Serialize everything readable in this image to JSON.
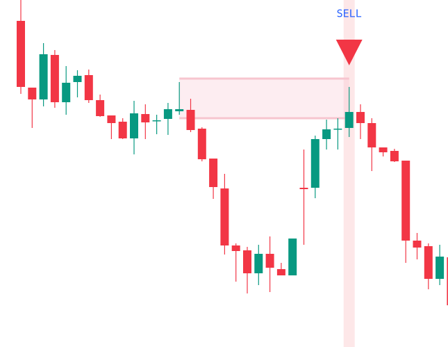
{
  "chart_data": {
    "type": "candlestick",
    "annotation": "SELL",
    "signal_index": 29,
    "zone": {
      "high": 386,
      "low": 329,
      "start_index": 14,
      "end_index": 29,
      "color": "#f7c5cf"
    },
    "up_color": "#089981",
    "down_color": "#f23645",
    "signal_color": "#f23645",
    "annotation_color": "#2962ff",
    "ylim": [
      0,
      499
    ],
    "open": [
      469,
      373,
      356,
      420,
      352,
      381,
      391,
      355,
      333,
      324,
      300,
      335,
      325,
      328,
      339,
      341,
      314,
      271,
      228,
      146,
      139,
      106,
      134,
      112,
      103,
      229,
      229,
      299,
      313,
      315,
      338,
      322,
      287,
      282,
      268,
      153,
      145,
      98,
      129
    ],
    "high": [
      499,
      373,
      437,
      427,
      404,
      398,
      399,
      363,
      333,
      329,
      354,
      349,
      334,
      351,
      381,
      357,
      316,
      271,
      249,
      149,
      144,
      147,
      159,
      121,
      156,
      284,
      304,
      327,
      329,
      374,
      349,
      329,
      287,
      285,
      268,
      164,
      149,
      147,
      129
    ],
    "low": [
      364,
      315,
      346,
      344,
      334,
      359,
      351,
      331,
      299,
      299,
      277,
      299,
      306,
      305,
      334,
      309,
      267,
      213,
      133,
      94,
      77,
      89,
      79,
      103,
      103,
      147,
      214,
      284,
      284,
      302,
      299,
      253,
      274,
      266,
      121,
      126,
      83,
      89,
      46
    ],
    "close": [
      374,
      356,
      421,
      352,
      380,
      390,
      355,
      332,
      322,
      300,
      336,
      323,
      326,
      342,
      342,
      312,
      270,
      230,
      146,
      138,
      106,
      134,
      114,
      103,
      156,
      227,
      299,
      313,
      314,
      338,
      322,
      287,
      280,
      267,
      153,
      143,
      98,
      130,
      60
    ]
  }
}
